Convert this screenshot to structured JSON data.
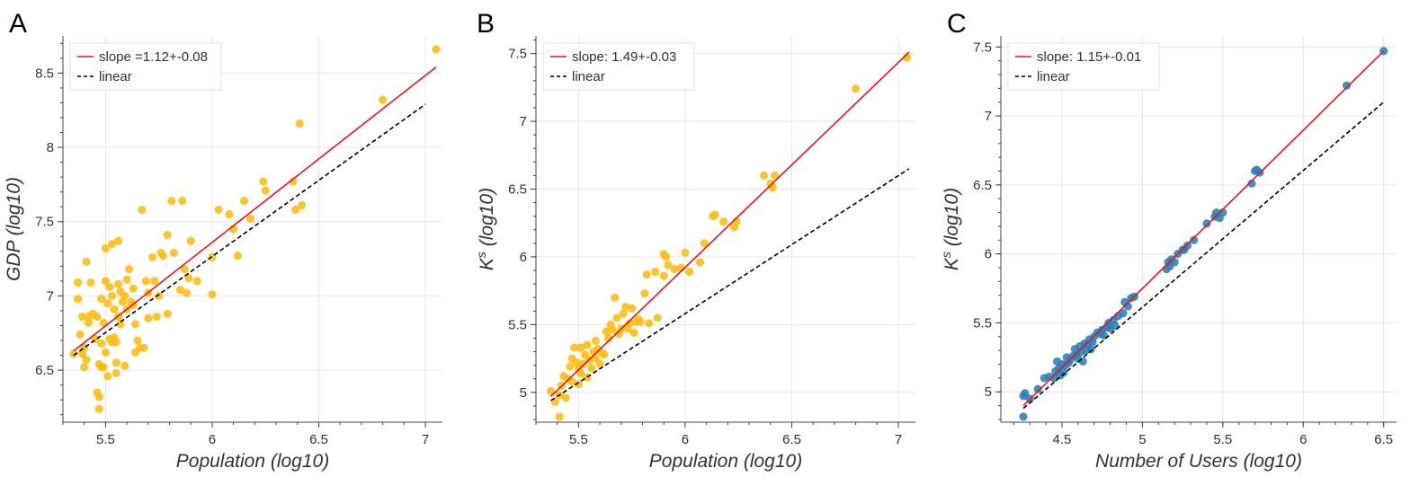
{
  "chart_data": [
    {
      "type": "scatter",
      "panel_label": "A",
      "xlabel": "Population (log10)",
      "ylabel": "GDP (log10)",
      "xlim": [
        5.3,
        7.08
      ],
      "ylim": [
        6.15,
        8.75
      ],
      "xticks": [
        5.5,
        6,
        6.5,
        7
      ],
      "xtick_labels": [
        "5.5",
        "6",
        "6.5",
        "7"
      ],
      "yticks": [
        6.5,
        7,
        7.5,
        8,
        8.5
      ],
      "ytick_labels": [
        "6.5",
        "7",
        "7.5",
        "8",
        "8.5"
      ],
      "grid": true,
      "legend_position": "top-left",
      "point_color": "#fbbc14",
      "fit": {
        "label": "slope =1.12+-0.08",
        "color": "#e8141c",
        "x": [
          5.35,
          7.05
        ],
        "y": [
          6.63,
          8.54
        ]
      },
      "reference": {
        "label": "linear",
        "color": "#000000",
        "x": [
          5.35,
          7.0
        ],
        "y": [
          6.6,
          8.29
        ]
      },
      "points": [
        [
          5.35,
          6.61
        ],
        [
          5.37,
          7.09
        ],
        [
          5.37,
          6.98
        ],
        [
          5.38,
          6.74
        ],
        [
          5.39,
          6.61
        ],
        [
          5.39,
          6.86
        ],
        [
          5.4,
          6.65
        ],
        [
          5.4,
          6.52
        ],
        [
          5.41,
          7.23
        ],
        [
          5.41,
          6.57
        ],
        [
          5.42,
          6.86
        ],
        [
          5.42,
          6.82
        ],
        [
          5.43,
          7.09
        ],
        [
          5.44,
          6.88
        ],
        [
          5.45,
          6.71
        ],
        [
          5.46,
          6.86
        ],
        [
          5.46,
          6.35
        ],
        [
          5.47,
          6.24
        ],
        [
          5.47,
          6.54
        ],
        [
          5.47,
          6.32
        ],
        [
          5.48,
          6.98
        ],
        [
          5.48,
          6.68
        ],
        [
          5.48,
          6.52
        ],
        [
          5.49,
          6.82
        ],
        [
          5.49,
          6.52
        ],
        [
          5.5,
          7.1
        ],
        [
          5.5,
          7.32
        ],
        [
          5.5,
          6.62
        ],
        [
          5.51,
          6.95
        ],
        [
          5.51,
          6.46
        ],
        [
          5.52,
          6.71
        ],
        [
          5.52,
          7.06
        ],
        [
          5.53,
          7.35
        ],
        [
          5.53,
          7.0
        ],
        [
          5.53,
          6.69
        ],
        [
          5.54,
          6.91
        ],
        [
          5.54,
          6.72
        ],
        [
          5.55,
          6.69
        ],
        [
          5.55,
          6.55
        ],
        [
          5.55,
          6.48
        ],
        [
          5.56,
          7.37
        ],
        [
          5.56,
          7.08
        ],
        [
          5.56,
          6.86
        ],
        [
          5.57,
          7.03
        ],
        [
          5.57,
          6.81
        ],
        [
          5.58,
          6.96
        ],
        [
          5.59,
          7.0
        ],
        [
          5.59,
          6.53
        ],
        [
          5.6,
          7.11
        ],
        [
          5.6,
          6.91
        ],
        [
          5.61,
          7.18
        ],
        [
          5.62,
          6.96
        ],
        [
          5.63,
          7.05
        ],
        [
          5.63,
          6.94
        ],
        [
          5.64,
          6.81
        ],
        [
          5.64,
          6.62
        ],
        [
          5.65,
          6.7
        ],
        [
          5.66,
          6.65
        ],
        [
          5.67,
          7.58
        ],
        [
          5.68,
          6.65
        ],
        [
          5.69,
          7.1
        ],
        [
          5.7,
          6.85
        ],
        [
          5.7,
          7.02
        ],
        [
          5.72,
          7.26
        ],
        [
          5.73,
          7.1
        ],
        [
          5.74,
          6.86
        ],
        [
          5.75,
          7.0
        ],
        [
          5.76,
          7.29
        ],
        [
          5.77,
          7.27
        ],
        [
          5.79,
          6.88
        ],
        [
          5.79,
          7.41
        ],
        [
          5.81,
          7.64
        ],
        [
          5.82,
          7.29
        ],
        [
          5.85,
          7.04
        ],
        [
          5.86,
          7.64
        ],
        [
          5.87,
          7.18
        ],
        [
          5.88,
          7.02
        ],
        [
          5.89,
          7.12
        ],
        [
          5.9,
          7.37
        ],
        [
          5.93,
          7.1
        ],
        [
          6.0,
          7.01
        ],
        [
          6.0,
          7.26
        ],
        [
          6.03,
          7.58
        ],
        [
          6.08,
          7.55
        ],
        [
          6.1,
          7.45
        ],
        [
          6.12,
          7.27
        ],
        [
          6.15,
          7.64
        ],
        [
          6.18,
          7.52
        ],
        [
          6.24,
          7.77
        ],
        [
          6.25,
          7.71
        ],
        [
          6.38,
          7.77
        ],
        [
          6.39,
          7.58
        ],
        [
          6.42,
          7.61
        ],
        [
          6.41,
          8.16
        ],
        [
          6.8,
          8.32
        ],
        [
          7.05,
          8.66
        ]
      ]
    },
    {
      "type": "scatter",
      "panel_label": "B",
      "xlabel": "Population (log10)",
      "ylabel": "K^s (log10)",
      "ylabel_main": "K",
      "ylabel_sup": "s",
      "ylabel_tail": " (log10)",
      "xlim": [
        5.3,
        7.08
      ],
      "ylim": [
        4.78,
        7.63
      ],
      "xticks": [
        5.5,
        6,
        6.5,
        7
      ],
      "xtick_labels": [
        "5.5",
        "6",
        "6.5",
        "7"
      ],
      "yticks": [
        5,
        5.5,
        6,
        6.5,
        7,
        7.5
      ],
      "ytick_labels": [
        "5",
        "5.5",
        "6",
        "6.5",
        "7",
        "7.5"
      ],
      "grid": true,
      "legend_position": "top-left",
      "point_color": "#fbbc14",
      "fit": {
        "label": "slope: 1.49+-0.03",
        "color": "#e8141c",
        "x": [
          5.37,
          7.05
        ],
        "y": [
          4.97,
          7.51
        ]
      },
      "reference": {
        "label": "linear",
        "color": "#000000",
        "x": [
          5.37,
          7.05
        ],
        "y": [
          4.94,
          6.65
        ]
      },
      "points": [
        [
          5.37,
          5.01
        ],
        [
          5.39,
          4.93
        ],
        [
          5.41,
          4.82
        ],
        [
          5.41,
          4.98
        ],
        [
          5.42,
          5.05
        ],
        [
          5.43,
          5.12
        ],
        [
          5.44,
          4.96
        ],
        [
          5.45,
          5.1
        ],
        [
          5.46,
          5.19
        ],
        [
          5.47,
          5.08
        ],
        [
          5.47,
          5.25
        ],
        [
          5.48,
          5.33
        ],
        [
          5.49,
          5.22
        ],
        [
          5.5,
          5.17
        ],
        [
          5.5,
          5.06
        ],
        [
          5.51,
          5.14
        ],
        [
          5.51,
          5.33
        ],
        [
          5.52,
          5.21
        ],
        [
          5.53,
          5.28
        ],
        [
          5.54,
          5.11
        ],
        [
          5.54,
          5.35
        ],
        [
          5.55,
          5.24
        ],
        [
          5.56,
          5.18
        ],
        [
          5.57,
          5.3
        ],
        [
          5.58,
          5.25
        ],
        [
          5.58,
          5.38
        ],
        [
          5.59,
          5.32
        ],
        [
          5.6,
          5.21
        ],
        [
          5.61,
          5.29
        ],
        [
          5.62,
          5.28
        ],
        [
          5.63,
          5.45
        ],
        [
          5.64,
          5.4
        ],
        [
          5.65,
          5.5
        ],
        [
          5.66,
          5.46
        ],
        [
          5.67,
          5.7
        ],
        [
          5.68,
          5.55
        ],
        [
          5.69,
          5.43
        ],
        [
          5.7,
          5.47
        ],
        [
          5.71,
          5.58
        ],
        [
          5.72,
          5.63
        ],
        [
          5.73,
          5.47
        ],
        [
          5.74,
          5.51
        ],
        [
          5.75,
          5.62
        ],
        [
          5.76,
          5.44
        ],
        [
          5.77,
          5.52
        ],
        [
          5.78,
          5.54
        ],
        [
          5.79,
          5.52
        ],
        [
          5.81,
          5.73
        ],
        [
          5.82,
          5.87
        ],
        [
          5.83,
          5.51
        ],
        [
          5.86,
          5.89
        ],
        [
          5.87,
          5.55
        ],
        [
          5.9,
          5.86
        ],
        [
          5.9,
          6.02
        ],
        [
          5.91,
          6.0
        ],
        [
          5.92,
          5.94
        ],
        [
          5.95,
          5.91
        ],
        [
          5.98,
          5.92
        ],
        [
          6.0,
          6.03
        ],
        [
          6.02,
          5.89
        ],
        [
          6.07,
          5.96
        ],
        [
          6.09,
          6.1
        ],
        [
          6.13,
          6.3
        ],
        [
          6.14,
          6.31
        ],
        [
          6.18,
          6.26
        ],
        [
          6.23,
          6.22
        ],
        [
          6.24,
          6.26
        ],
        [
          6.37,
          6.6
        ],
        [
          6.4,
          6.54
        ],
        [
          6.41,
          6.51
        ],
        [
          6.42,
          6.6
        ],
        [
          6.8,
          7.24
        ],
        [
          7.04,
          7.47
        ]
      ]
    },
    {
      "type": "scatter",
      "panel_label": "C",
      "xlabel": "Number of Users (log10)",
      "ylabel": "K^s (log10)",
      "ylabel_main": "K",
      "ylabel_sup": "s",
      "ylabel_tail": " (log10)",
      "xlim": [
        4.12,
        6.58
      ],
      "ylim": [
        4.78,
        7.58
      ],
      "xticks": [
        4.5,
        5,
        5.5,
        6,
        6.5
      ],
      "xtick_labels": [
        "4.5",
        "5",
        "5.5",
        "6",
        "6.5"
      ],
      "yticks": [
        5,
        5.5,
        6,
        6.5,
        7,
        7.5
      ],
      "ytick_labels": [
        "5",
        "5.5",
        "6",
        "6.5",
        "7",
        "7.5"
      ],
      "grid": true,
      "legend_position": "top-left",
      "point_color": "#2e7eb8",
      "fit": {
        "label": "slope: 1.15+-0.01",
        "color": "#e8141c",
        "x": [
          4.26,
          6.5
        ],
        "y": [
          4.9,
          7.47
        ]
      },
      "reference": {
        "label": "linear",
        "color": "#000000",
        "x": [
          4.26,
          6.5
        ],
        "y": [
          4.88,
          7.1
        ]
      },
      "points": [
        [
          4.26,
          4.82
        ],
        [
          4.26,
          4.97
        ],
        [
          4.27,
          4.99
        ],
        [
          4.3,
          4.95
        ],
        [
          4.35,
          5.02
        ],
        [
          4.39,
          5.1
        ],
        [
          4.42,
          5.11
        ],
        [
          4.45,
          5.1
        ],
        [
          4.46,
          5.15
        ],
        [
          4.47,
          5.22
        ],
        [
          4.48,
          5.17
        ],
        [
          4.49,
          5.12
        ],
        [
          4.5,
          5.2
        ],
        [
          4.51,
          5.14
        ],
        [
          4.52,
          5.19
        ],
        [
          4.53,
          5.25
        ],
        [
          4.54,
          5.21
        ],
        [
          4.55,
          5.23
        ],
        [
          4.57,
          5.26
        ],
        [
          4.58,
          5.31
        ],
        [
          4.59,
          5.27
        ],
        [
          4.6,
          5.24
        ],
        [
          4.61,
          5.33
        ],
        [
          4.62,
          5.29
        ],
        [
          4.63,
          5.22
        ],
        [
          4.64,
          5.35
        ],
        [
          4.65,
          5.3
        ],
        [
          4.66,
          5.34
        ],
        [
          4.67,
          5.38
        ],
        [
          4.68,
          5.31
        ],
        [
          4.69,
          5.36
        ],
        [
          4.7,
          5.4
        ],
        [
          4.72,
          5.43
        ],
        [
          4.74,
          5.42
        ],
        [
          4.75,
          5.45
        ],
        [
          4.76,
          5.41
        ],
        [
          4.78,
          5.47
        ],
        [
          4.79,
          5.5
        ],
        [
          4.8,
          5.46
        ],
        [
          4.82,
          5.52
        ],
        [
          4.83,
          5.48
        ],
        [
          4.85,
          5.55
        ],
        [
          4.88,
          5.57
        ],
        [
          4.89,
          5.65
        ],
        [
          4.91,
          5.62
        ],
        [
          4.93,
          5.68
        ],
        [
          4.95,
          5.69
        ],
        [
          5.15,
          5.89
        ],
        [
          5.16,
          5.94
        ],
        [
          5.17,
          5.91
        ],
        [
          5.18,
          5.96
        ],
        [
          5.2,
          5.94
        ],
        [
          5.22,
          6.0
        ],
        [
          5.25,
          6.03
        ],
        [
          5.26,
          6.03
        ],
        [
          5.28,
          6.06
        ],
        [
          5.32,
          6.1
        ],
        [
          5.4,
          6.22
        ],
        [
          5.45,
          6.27
        ],
        [
          5.46,
          6.3
        ],
        [
          5.48,
          6.26
        ],
        [
          5.5,
          6.3
        ],
        [
          5.68,
          6.51
        ],
        [
          5.7,
          6.6
        ],
        [
          5.71,
          6.61
        ],
        [
          5.73,
          6.59
        ],
        [
          6.27,
          7.22
        ],
        [
          6.5,
          7.47
        ]
      ]
    }
  ]
}
